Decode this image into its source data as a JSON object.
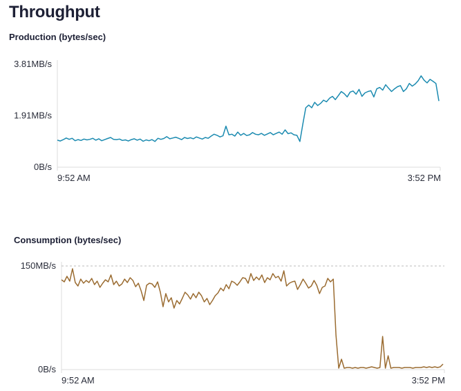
{
  "title": "Throughput",
  "colors": {
    "production": "#1a8ab0",
    "consumption": "#9a6b30",
    "axis": "#dcdcdc",
    "grid": "#bbbbbb",
    "text": "#1d2035"
  },
  "chart_data": [
    {
      "type": "line",
      "title": "Production (bytes/sec)",
      "yticks": [
        {
          "value": 0,
          "label": "0B/s"
        },
        {
          "value": 1.91,
          "label": "1.91MB/s"
        },
        {
          "value": 3.81,
          "label": "3.81MB/s"
        }
      ],
      "xticks": [
        "9:52 AM",
        "3:52 PM"
      ],
      "ylim": [
        0,
        3.81
      ],
      "y_unit": "MB/s",
      "series": [
        {
          "color": "#1a8ab0",
          "values": [
            1.0,
            0.97,
            1.02,
            1.08,
            1.03,
            1.07,
            0.98,
            1.02,
            0.99,
            1.04,
            1.01,
            1.03,
            1.07,
            1.0,
            1.05,
            0.98,
            1.02,
            1.06,
            1.1,
            1.03,
            1.02,
            1.04,
            0.99,
            1.01,
            0.97,
            1.02,
            1.05,
            1.0,
            1.04,
            0.96,
            1.01,
            0.98,
            1.02,
            0.95,
            1.07,
            1.03,
            1.06,
            1.13,
            1.05,
            1.08,
            1.11,
            1.07,
            1.02,
            1.1,
            1.06,
            1.09,
            1.05,
            1.12,
            1.08,
            1.04,
            1.1,
            1.07,
            1.15,
            1.22,
            1.18,
            1.12,
            1.16,
            1.52,
            1.2,
            1.22,
            1.15,
            1.3,
            1.18,
            1.25,
            1.17,
            1.2,
            1.28,
            1.22,
            1.2,
            1.25,
            1.18,
            1.23,
            1.28,
            1.2,
            1.25,
            1.3,
            1.22,
            1.38,
            1.24,
            1.27,
            1.2,
            1.18,
            0.95,
            1.6,
            2.2,
            2.3,
            2.2,
            2.4,
            2.28,
            2.36,
            2.48,
            2.42,
            2.55,
            2.62,
            2.5,
            2.65,
            2.8,
            2.72,
            2.6,
            2.78,
            2.82,
            2.7,
            2.88,
            2.62,
            2.75,
            2.8,
            2.83,
            2.6,
            2.9,
            2.95,
            2.85,
            3.05,
            2.92,
            2.8,
            2.9,
            2.98,
            3.02,
            2.8,
            2.9,
            3.1,
            3.0,
            3.08,
            3.2,
            3.38,
            3.22,
            3.12,
            3.25,
            3.18,
            3.1,
            2.45
          ]
        }
      ]
    },
    {
      "type": "line",
      "title": "Consumption (bytes/sec)",
      "yticks": [
        {
          "value": 0,
          "label": "0B/s"
        },
        {
          "value": 150,
          "label": "150MB/s"
        }
      ],
      "xticks": [
        "9:52 AM",
        "3:52 PM"
      ],
      "ylim": [
        0,
        150
      ],
      "y_unit": "MB/s",
      "series": [
        {
          "color": "#9a6b30",
          "values": [
            130,
            127,
            135,
            128,
            146,
            126,
            121,
            131,
            125,
            129,
            126,
            132,
            123,
            128,
            119,
            125,
            130,
            127,
            137,
            123,
            128,
            121,
            124,
            131,
            126,
            133,
            129,
            120,
            125,
            114,
            100,
            122,
            125,
            124,
            119,
            127,
            112,
            91,
            110,
            98,
            104,
            89,
            100,
            95,
            103,
            112,
            108,
            102,
            110,
            104,
            112,
            107,
            98,
            103,
            94,
            100,
            107,
            111,
            118,
            114,
            123,
            117,
            128,
            126,
            122,
            127,
            133,
            132,
            125,
            139,
            129,
            134,
            130,
            137,
            126,
            133,
            130,
            139,
            133,
            135,
            128,
            143,
            121,
            125,
            127,
            128,
            116,
            123,
            131,
            125,
            118,
            121,
            129,
            122,
            110,
            119,
            121,
            132,
            127,
            131,
            50,
            2,
            15,
            2,
            3,
            3,
            2,
            3,
            2,
            3,
            3,
            2,
            3,
            4,
            3,
            2,
            3,
            48,
            2,
            20,
            2,
            3,
            3,
            3,
            2,
            3,
            3,
            3,
            2,
            3,
            3,
            3,
            4,
            3,
            4,
            3,
            4,
            3,
            4,
            8
          ]
        }
      ]
    }
  ]
}
